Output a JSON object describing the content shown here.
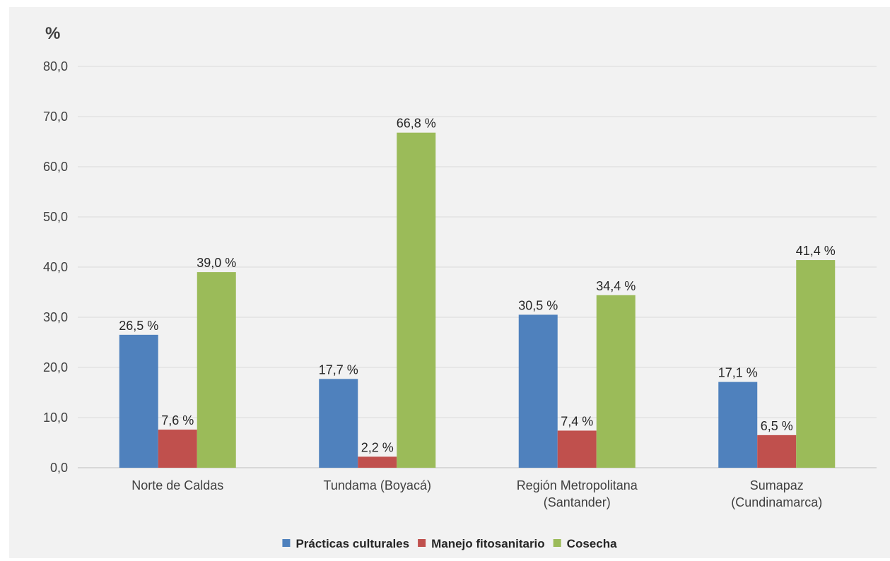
{
  "chart_data": {
    "type": "bar",
    "unit_label": "%",
    "categories": [
      [
        "Norte de Caldas"
      ],
      [
        "Tundama (Boyacá)"
      ],
      [
        "Región Metropolitana",
        "(Santander)"
      ],
      [
        "Sumapaz",
        "(Cundinamarca)"
      ]
    ],
    "series": [
      {
        "name": "Prácticas culturales",
        "color": "#4f81bd",
        "values": [
          26.5,
          17.7,
          30.5,
          17.1
        ],
        "labels": [
          "26,5 %",
          "17,7 %",
          "30,5 %",
          "17,1 %"
        ]
      },
      {
        "name": "Manejo fitosanitario",
        "color": "#c0504d",
        "values": [
          7.6,
          2.2,
          7.4,
          6.5
        ],
        "labels": [
          "7,6 %",
          "2,2 %",
          "7,4 %",
          "6,5 %"
        ]
      },
      {
        "name": "Cosecha",
        "color": "#9bbb59",
        "values": [
          39.0,
          66.8,
          34.4,
          41.4
        ],
        "labels": [
          "39,0 %",
          "66,8 %",
          "34,4 %",
          "41,4 %"
        ]
      }
    ],
    "ylim": [
      0,
      80
    ],
    "yticks": [
      0,
      10,
      20,
      30,
      40,
      50,
      60,
      70,
      80
    ],
    "ytick_labels": [
      "0,0",
      "10,0",
      "20,0",
      "30,0",
      "40,0",
      "50,0",
      "60,0",
      "70,0",
      "80,0"
    ],
    "grid": true,
    "legend_position": "bottom"
  }
}
